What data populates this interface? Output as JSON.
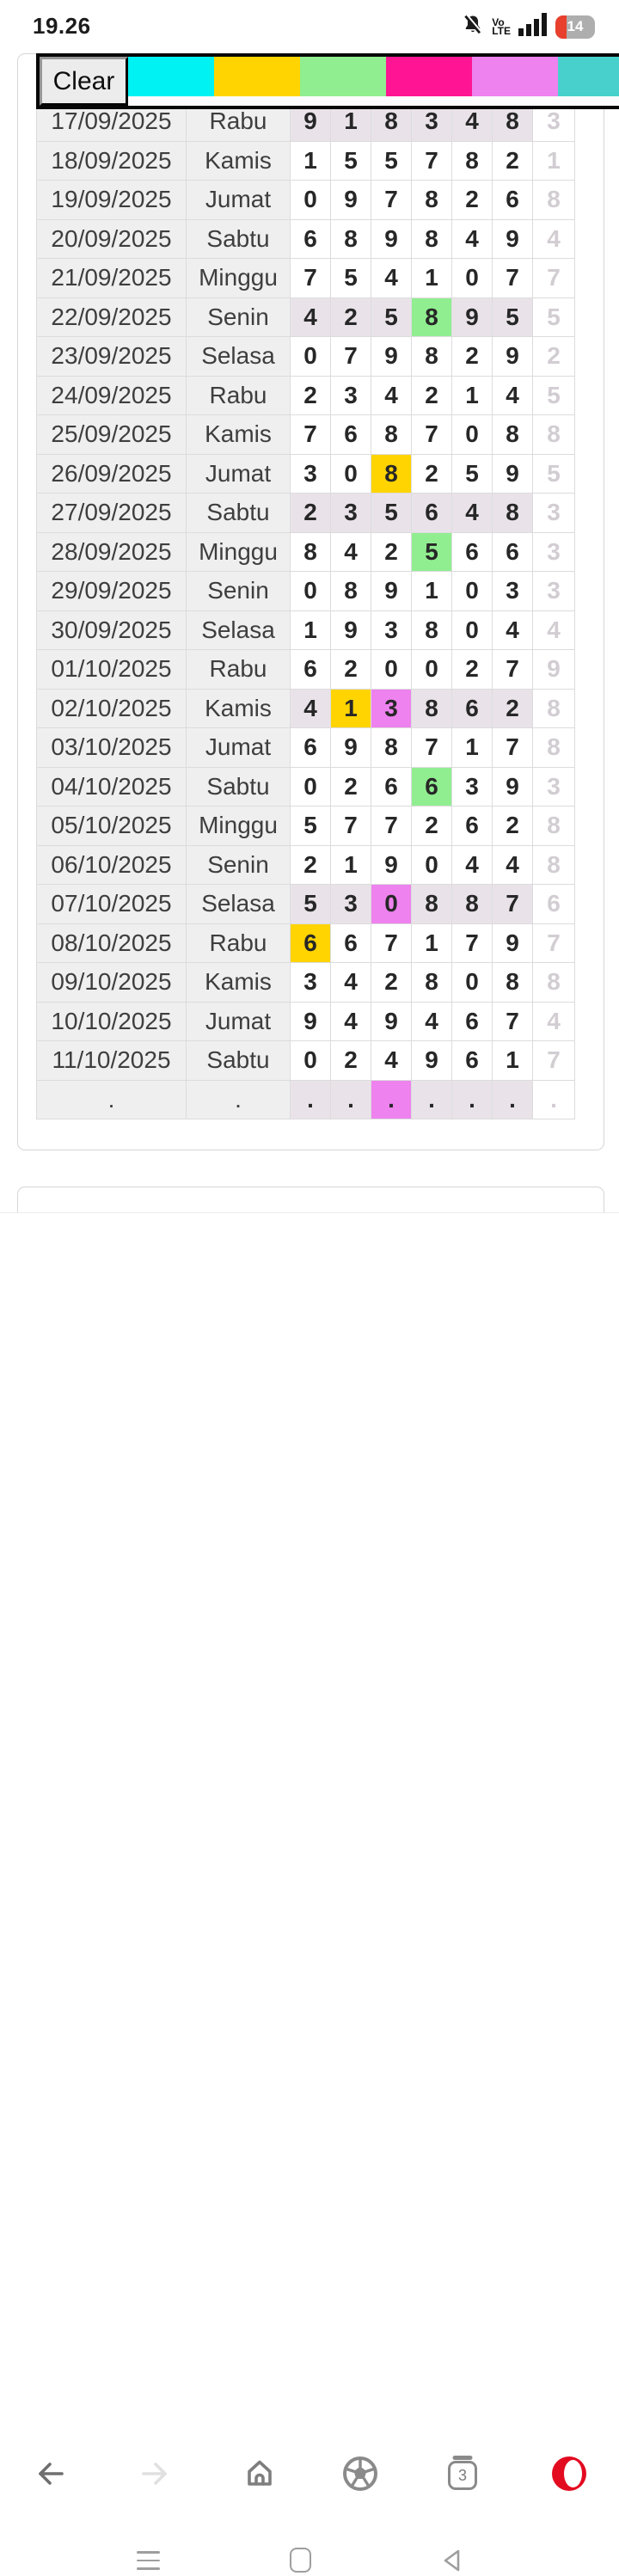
{
  "status_bar": {
    "time": "19.26",
    "volte_line1": "Vo",
    "volte_line2": "LTE",
    "battery_percent": "14",
    "battery_red": "#e8402d"
  },
  "toolbar": {
    "clear_label": "Clear",
    "palette": [
      {
        "name": "cyan",
        "hex": "#00f2f2"
      },
      {
        "name": "gold",
        "hex": "#ffd400"
      },
      {
        "name": "green",
        "hex": "#90ee90"
      },
      {
        "name": "pink",
        "hex": "#ff1493"
      },
      {
        "name": "violet",
        "hex": "#ee82ee"
      },
      {
        "name": "teal",
        "hex": "#48d1cc"
      }
    ]
  },
  "table": {
    "highlight_colors": {
      "yellow": "#ffd400",
      "green": "#90ee90",
      "violet": "#ee82ee"
    },
    "row_shade": "#e9e3e9",
    "rows": [
      {
        "date": "17/09/2025",
        "day": "Rabu",
        "digits": [
          "9",
          "1",
          "8",
          "3",
          "4",
          "8"
        ],
        "extra": "3",
        "shaded": true,
        "marks": {}
      },
      {
        "date": "18/09/2025",
        "day": "Kamis",
        "digits": [
          "1",
          "5",
          "5",
          "7",
          "8",
          "2"
        ],
        "extra": "1",
        "shaded": false,
        "marks": {}
      },
      {
        "date": "19/09/2025",
        "day": "Jumat",
        "digits": [
          "0",
          "9",
          "7",
          "8",
          "2",
          "6"
        ],
        "extra": "8",
        "shaded": false,
        "marks": {}
      },
      {
        "date": "20/09/2025",
        "day": "Sabtu",
        "digits": [
          "6",
          "8",
          "9",
          "8",
          "4",
          "9"
        ],
        "extra": "4",
        "shaded": false,
        "marks": {}
      },
      {
        "date": "21/09/2025",
        "day": "Minggu",
        "digits": [
          "7",
          "5",
          "4",
          "1",
          "0",
          "7"
        ],
        "extra": "7",
        "shaded": false,
        "marks": {}
      },
      {
        "date": "22/09/2025",
        "day": "Senin",
        "digits": [
          "4",
          "2",
          "5",
          "8",
          "9",
          "5"
        ],
        "extra": "5",
        "shaded": true,
        "marks": {
          "3": "green"
        }
      },
      {
        "date": "23/09/2025",
        "day": "Selasa",
        "digits": [
          "0",
          "7",
          "9",
          "8",
          "2",
          "9"
        ],
        "extra": "2",
        "shaded": false,
        "marks": {}
      },
      {
        "date": "24/09/2025",
        "day": "Rabu",
        "digits": [
          "2",
          "3",
          "4",
          "2",
          "1",
          "4"
        ],
        "extra": "5",
        "shaded": false,
        "marks": {}
      },
      {
        "date": "25/09/2025",
        "day": "Kamis",
        "digits": [
          "7",
          "6",
          "8",
          "7",
          "0",
          "8"
        ],
        "extra": "8",
        "shaded": false,
        "marks": {}
      },
      {
        "date": "26/09/2025",
        "day": "Jumat",
        "digits": [
          "3",
          "0",
          "8",
          "2",
          "5",
          "9"
        ],
        "extra": "5",
        "shaded": false,
        "marks": {
          "2": "yellow"
        }
      },
      {
        "date": "27/09/2025",
        "day": "Sabtu",
        "digits": [
          "2",
          "3",
          "5",
          "6",
          "4",
          "8"
        ],
        "extra": "3",
        "shaded": true,
        "marks": {}
      },
      {
        "date": "28/09/2025",
        "day": "Minggu",
        "digits": [
          "8",
          "4",
          "2",
          "5",
          "6",
          "6"
        ],
        "extra": "3",
        "shaded": false,
        "marks": {
          "3": "green"
        }
      },
      {
        "date": "29/09/2025",
        "day": "Senin",
        "digits": [
          "0",
          "8",
          "9",
          "1",
          "0",
          "3"
        ],
        "extra": "3",
        "shaded": false,
        "marks": {}
      },
      {
        "date": "30/09/2025",
        "day": "Selasa",
        "digits": [
          "1",
          "9",
          "3",
          "8",
          "0",
          "4"
        ],
        "extra": "4",
        "shaded": false,
        "marks": {}
      },
      {
        "date": "01/10/2025",
        "day": "Rabu",
        "digits": [
          "6",
          "2",
          "0",
          "0",
          "2",
          "7"
        ],
        "extra": "9",
        "shaded": false,
        "marks": {}
      },
      {
        "date": "02/10/2025",
        "day": "Kamis",
        "digits": [
          "4",
          "1",
          "3",
          "8",
          "6",
          "2"
        ],
        "extra": "8",
        "shaded": true,
        "marks": {
          "1": "yellow",
          "2": "violet"
        }
      },
      {
        "date": "03/10/2025",
        "day": "Jumat",
        "digits": [
          "6",
          "9",
          "8",
          "7",
          "1",
          "7"
        ],
        "extra": "8",
        "shaded": false,
        "marks": {}
      },
      {
        "date": "04/10/2025",
        "day": "Sabtu",
        "digits": [
          "0",
          "2",
          "6",
          "6",
          "3",
          "9"
        ],
        "extra": "3",
        "shaded": false,
        "marks": {
          "3": "green"
        }
      },
      {
        "date": "05/10/2025",
        "day": "Minggu",
        "digits": [
          "5",
          "7",
          "7",
          "2",
          "6",
          "2"
        ],
        "extra": "8",
        "shaded": false,
        "marks": {}
      },
      {
        "date": "06/10/2025",
        "day": "Senin",
        "digits": [
          "2",
          "1",
          "9",
          "0",
          "4",
          "4"
        ],
        "extra": "8",
        "shaded": false,
        "marks": {}
      },
      {
        "date": "07/10/2025",
        "day": "Selasa",
        "digits": [
          "5",
          "3",
          "0",
          "8",
          "8",
          "7"
        ],
        "extra": "6",
        "shaded": true,
        "marks": {
          "2": "violet"
        }
      },
      {
        "date": "08/10/2025",
        "day": "Rabu",
        "digits": [
          "6",
          "6",
          "7",
          "1",
          "7",
          "9"
        ],
        "extra": "7",
        "shaded": false,
        "marks": {
          "0": "yellow"
        }
      },
      {
        "date": "09/10/2025",
        "day": "Kamis",
        "digits": [
          "3",
          "4",
          "2",
          "8",
          "0",
          "8"
        ],
        "extra": "8",
        "shaded": false,
        "marks": {}
      },
      {
        "date": "10/10/2025",
        "day": "Jumat",
        "digits": [
          "9",
          "4",
          "9",
          "4",
          "6",
          "7"
        ],
        "extra": "4",
        "shaded": false,
        "marks": {}
      },
      {
        "date": "11/10/2025",
        "day": "Sabtu",
        "digits": [
          "0",
          "2",
          "4",
          "9",
          "6",
          "1"
        ],
        "extra": "7",
        "shaded": false,
        "marks": {}
      },
      {
        "date": ".",
        "day": ".",
        "digits": [
          ".",
          ".",
          ".",
          ".",
          ".",
          "."
        ],
        "extra": ".",
        "shaded": true,
        "marks": {
          "2": "violet"
        }
      }
    ]
  },
  "browser_nav": {
    "tab_count": "3",
    "opera_red": "#e30b20"
  }
}
